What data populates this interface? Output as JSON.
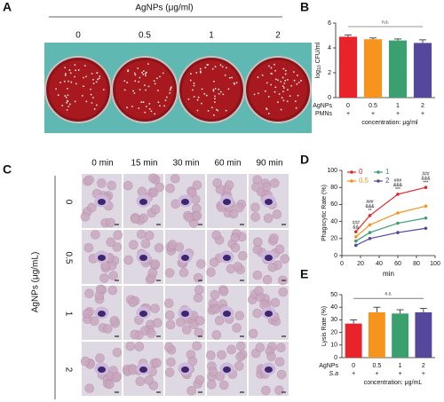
{
  "panel_a": {
    "label": "A",
    "header": "AgNPs (μg/ml)",
    "conditions": [
      "0",
      "0.5",
      "1",
      "2"
    ]
  },
  "panel_c": {
    "label": "C",
    "columns": [
      "0 min",
      "15 min",
      "30 min",
      "60 min",
      "90 min"
    ],
    "rows": [
      "0",
      "0.5",
      "1",
      "2"
    ],
    "row_title": "AgNPs (μg/mL)"
  },
  "chart_data": [
    {
      "type": "bar",
      "label": "B",
      "ylabel": [
        "log",
        "10",
        " CFU/ml"
      ],
      "categories": [
        "0",
        "0.5",
        "1",
        "2"
      ],
      "values": [
        4.9,
        4.7,
        4.6,
        4.4
      ],
      "errors": [
        0.15,
        0.1,
        0.12,
        0.25
      ],
      "colors": [
        "#e8242a",
        "#f7941d",
        "#3aa070",
        "#54479c"
      ],
      "ylim": [
        0,
        6
      ],
      "yticks": [
        0,
        2,
        4,
        6
      ],
      "annotation": "n.s.",
      "rows": [
        {
          "label": "AgNPs",
          "values": [
            "0",
            "0.5",
            "1",
            "2"
          ]
        },
        {
          "label": "PMNs",
          "values": [
            "+",
            "+",
            "+",
            "+"
          ]
        }
      ],
      "xlabel": "concentration: μg/ml"
    },
    {
      "type": "line",
      "label": "D",
      "ylabel": "Phagocytic Rate (%)",
      "xlabel": "min",
      "x": [
        15,
        30,
        60,
        90
      ],
      "xlim": [
        0,
        100
      ],
      "xticks": [
        0,
        20,
        40,
        60,
        80,
        100
      ],
      "ylim": [
        0,
        100
      ],
      "yticks": [
        0,
        20,
        40,
        60,
        80,
        100
      ],
      "series": [
        {
          "name": "0",
          "color": "#e8242a",
          "values": [
            28,
            47,
            72,
            80
          ]
        },
        {
          "name": "0.5",
          "color": "#f7941d",
          "values": [
            22,
            36,
            50,
            58
          ]
        },
        {
          "name": "1",
          "color": "#3aa070",
          "values": [
            17,
            27,
            38,
            44
          ]
        },
        {
          "name": "2",
          "color": "#54479c",
          "values": [
            12,
            20,
            27,
            32
          ]
        }
      ],
      "annotations": [
        {
          "x": 15,
          "text": [
            "###",
            "&&"
          ]
        },
        {
          "x": 30,
          "text": [
            "###",
            "&&&",
            "**"
          ]
        },
        {
          "x": 60,
          "text": [
            "###",
            "&&&",
            "***"
          ]
        },
        {
          "x": 90,
          "text": [
            "###",
            "&&&",
            "***"
          ]
        }
      ]
    },
    {
      "type": "bar",
      "label": "E",
      "ylabel": "Lysis Rate (%)",
      "categories": [
        "0",
        "0.5",
        "1",
        "2"
      ],
      "values": [
        27,
        36,
        35,
        36
      ],
      "errors": [
        3,
        4,
        3,
        3
      ],
      "colors": [
        "#e8242a",
        "#f7941d",
        "#3aa070",
        "#54479c"
      ],
      "ylim": [
        0,
        50
      ],
      "yticks": [
        0,
        10,
        20,
        30,
        40,
        50
      ],
      "annotation": "n.s.",
      "rows": [
        {
          "label": "AgNPs",
          "values": [
            "0",
            "0.5",
            "1",
            "2"
          ]
        },
        {
          "label": "S.a",
          "italic": true,
          "values": [
            "+",
            "+",
            "+",
            "+"
          ]
        }
      ],
      "xlabel": "concentration: μg/mL"
    }
  ]
}
